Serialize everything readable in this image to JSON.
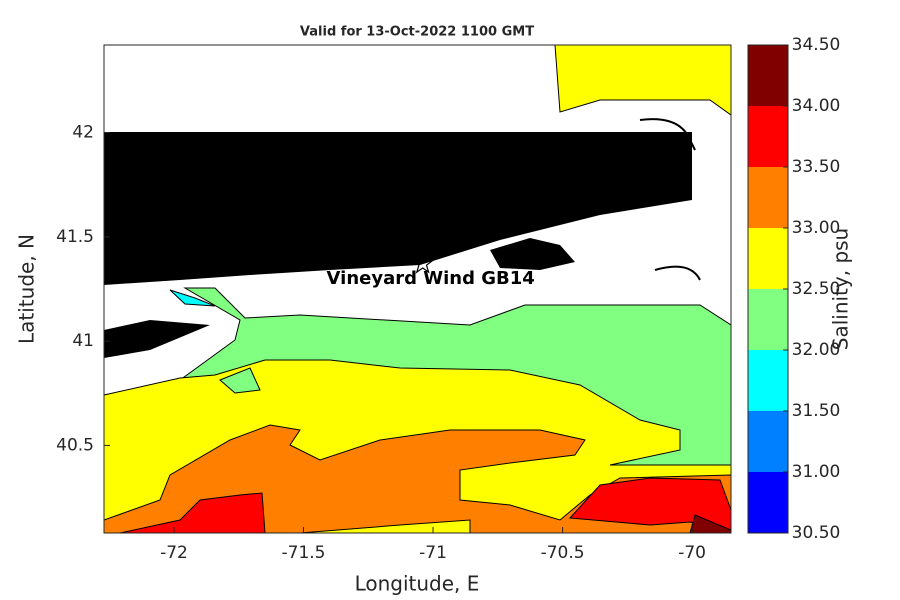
{
  "chart_data": {
    "type": "contour",
    "title": "Valid for 13-Oct-2022 1100 GMT",
    "x_label": "Longitude, E",
    "y_label": "Latitude, N",
    "xlim": [
      -72.27,
      -69.85
    ],
    "ylim": [
      40.08,
      42.42
    ],
    "xticks": [
      -72,
      -71.5,
      -71,
      -70.5,
      -70
    ],
    "yticks": [
      40.5,
      41,
      41.5,
      42
    ],
    "marker": {
      "label": "Vineyard Wind GB14",
      "lon": -71.04,
      "lat": 41.37
    },
    "colorbar": {
      "label": "Salinity, psu",
      "lim": [
        30.5,
        34.5
      ],
      "ticks": [
        {
          "value": 30.5,
          "label": "30.50"
        },
        {
          "value": 31,
          "label": "31.00"
        },
        {
          "value": 31.5,
          "label": "31.50"
        },
        {
          "value": 32,
          "label": "32.00"
        },
        {
          "value": 32.5,
          "label": "32.50"
        },
        {
          "value": 33,
          "label": "33.00"
        },
        {
          "value": 33.5,
          "label": "33.50"
        },
        {
          "value": 34,
          "label": "34.00"
        },
        {
          "value": 34.5,
          "label": "34.50"
        }
      ],
      "colors": [
        "#0000ff",
        "#0080ff",
        "#00ffff",
        "#80ff80",
        "#ffff00",
        "#ff8000",
        "#ff0000",
        "#800000"
      ]
    }
  }
}
